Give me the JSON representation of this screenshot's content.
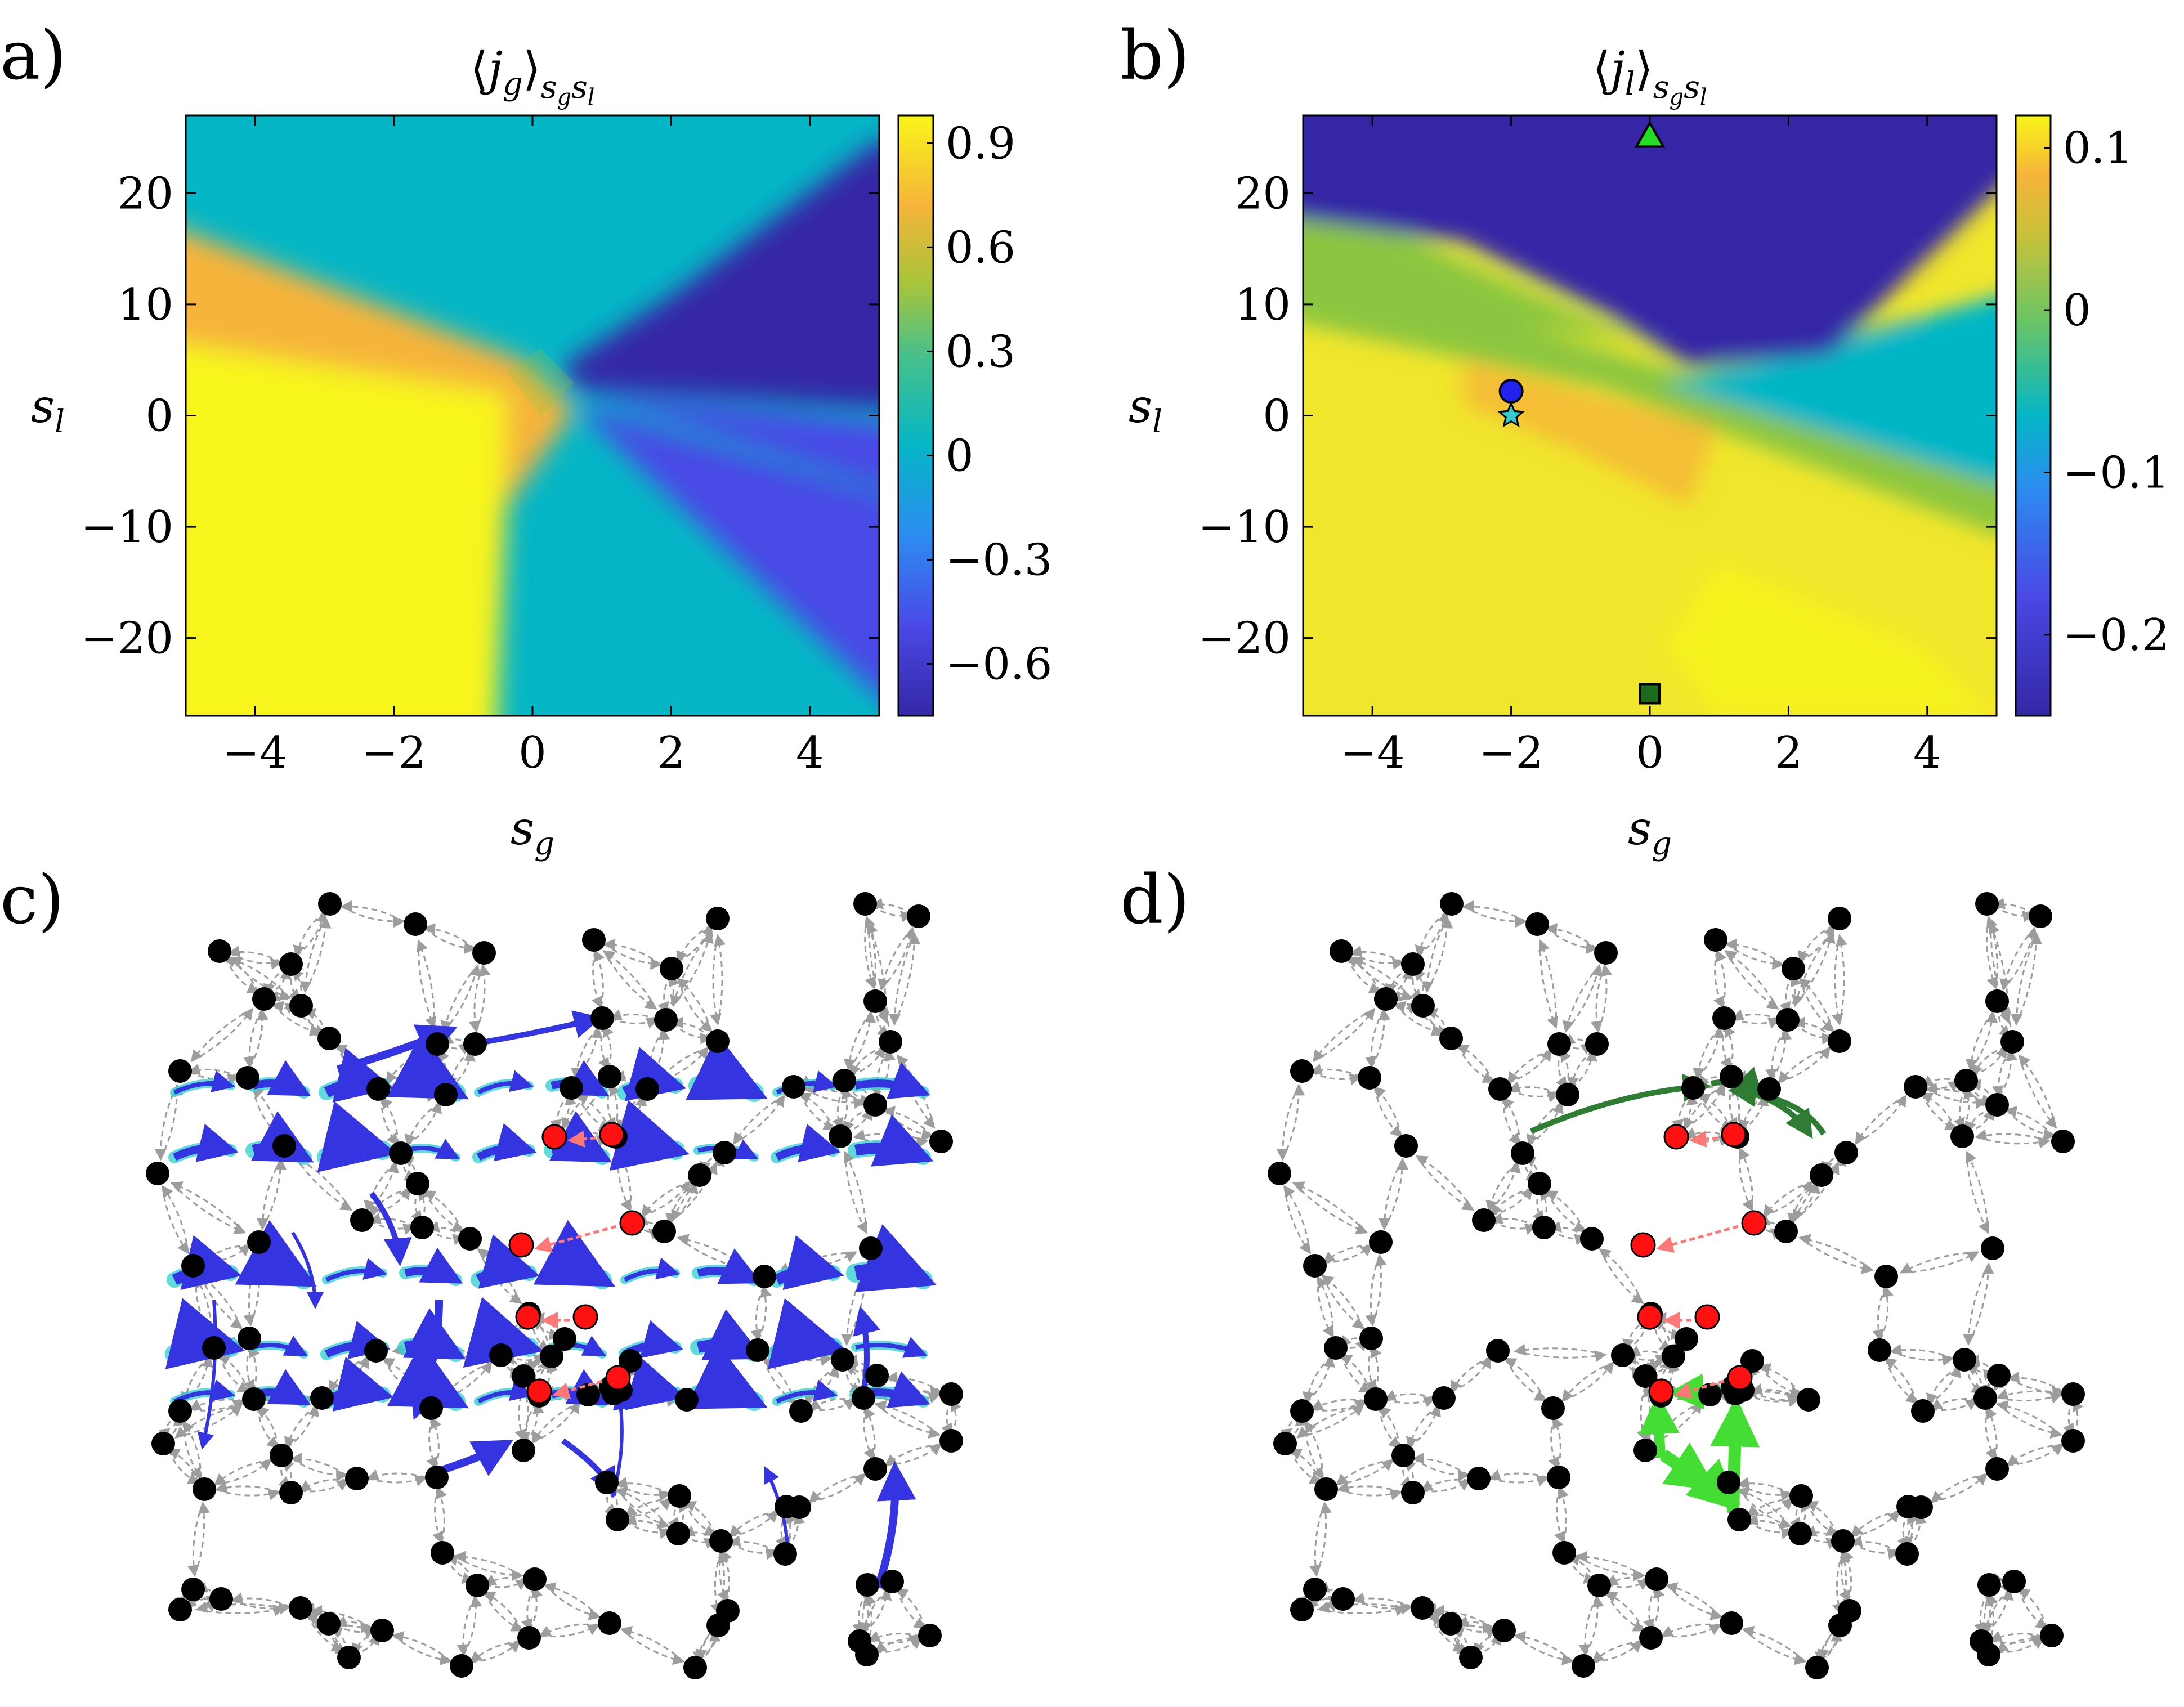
{
  "panels": {
    "a": {
      "label": "a)"
    },
    "b": {
      "label": "b)"
    },
    "c": {
      "label": "c)"
    },
    "d": {
      "label": "d)"
    }
  },
  "colors": {
    "yellow": "#f8f51a",
    "orange": "#f6b43a",
    "teal": "#05b6c6",
    "indigo": "#3527a6",
    "blue_mid": "#4a49e6",
    "green_mid": "#8cc63f",
    "node_black": "#000000",
    "node_red": "#ff1111",
    "edge_gray": "#9d9d9d",
    "current_blue": "#3434e0",
    "current_cyan": "#37d2d2",
    "current_green_light": "#44dd33",
    "current_green_dark": "#2e7d32"
  },
  "chart_data": [
    {
      "type": "heatmap",
      "panel": "a",
      "title": "⟨j_g⟩_{s_g s_l}",
      "xlabel": "s_g",
      "ylabel": "s_l",
      "xlim": [
        -5,
        5
      ],
      "ylim": [
        -27,
        27
      ],
      "x_ticks": [
        -4,
        -2,
        0,
        2,
        4
      ],
      "x_tick_labels": [
        "−4",
        "−2",
        "0",
        "2",
        "4"
      ],
      "y_ticks": [
        -20,
        -10,
        0,
        10,
        20
      ],
      "y_tick_labels": [
        "−20",
        "−10",
        "0",
        "10",
        "20"
      ],
      "colorbar": {
        "range": [
          -0.75,
          0.98
        ],
        "ticks": [
          0.9,
          0.6,
          0.3,
          0,
          -0.3,
          -0.6
        ],
        "tick_labels": [
          "0.9",
          "0.6",
          "0.3",
          "0",
          "−0.3",
          "−0.6"
        ]
      },
      "regions": [
        {
          "name": "upper-plateau",
          "value": 0
        },
        {
          "name": "lower-left",
          "value": 0.98
        },
        {
          "name": "left-band",
          "value": 0.75
        },
        {
          "name": "right-upper",
          "value": -0.75
        },
        {
          "name": "right-lower",
          "value": -0.55
        }
      ]
    },
    {
      "type": "heatmap",
      "panel": "b",
      "title": "⟨j_l⟩_{s_g s_l}",
      "xlabel": "s_g",
      "ylabel": "s_l",
      "xlim": [
        -5,
        5
      ],
      "ylim": [
        -27,
        27
      ],
      "x_ticks": [
        -4,
        -2,
        0,
        2,
        4
      ],
      "x_tick_labels": [
        "−4",
        "−2",
        "0",
        "2",
        "4"
      ],
      "y_ticks": [
        -20,
        -10,
        0,
        10,
        20
      ],
      "y_tick_labels": [
        "−20",
        "−10",
        "0",
        "10",
        "20"
      ],
      "colorbar": {
        "range": [
          -0.25,
          0.12
        ],
        "ticks": [
          0.1,
          0,
          -0.1,
          -0.2
        ],
        "tick_labels": [
          "0.1",
          "0",
          "−0.1",
          "−0.2"
        ]
      },
      "regions": [
        {
          "name": "top",
          "value": -0.25
        },
        {
          "name": "middle-band",
          "value": 0
        },
        {
          "name": "right-band",
          "value": -0.1
        },
        {
          "name": "bottom",
          "value": 0.11
        }
      ],
      "markers": [
        {
          "shape": "triangle",
          "color": "#22dd22",
          "x": 0,
          "y": 25
        },
        {
          "shape": "circle",
          "color": "#2222ee",
          "x": -2,
          "y": 2.2
        },
        {
          "shape": "star",
          "color": "#33cccc",
          "x": -2,
          "y": 0
        },
        {
          "shape": "square",
          "color": "#1b6b1b",
          "x": 0,
          "y": -25
        }
      ]
    }
  ]
}
